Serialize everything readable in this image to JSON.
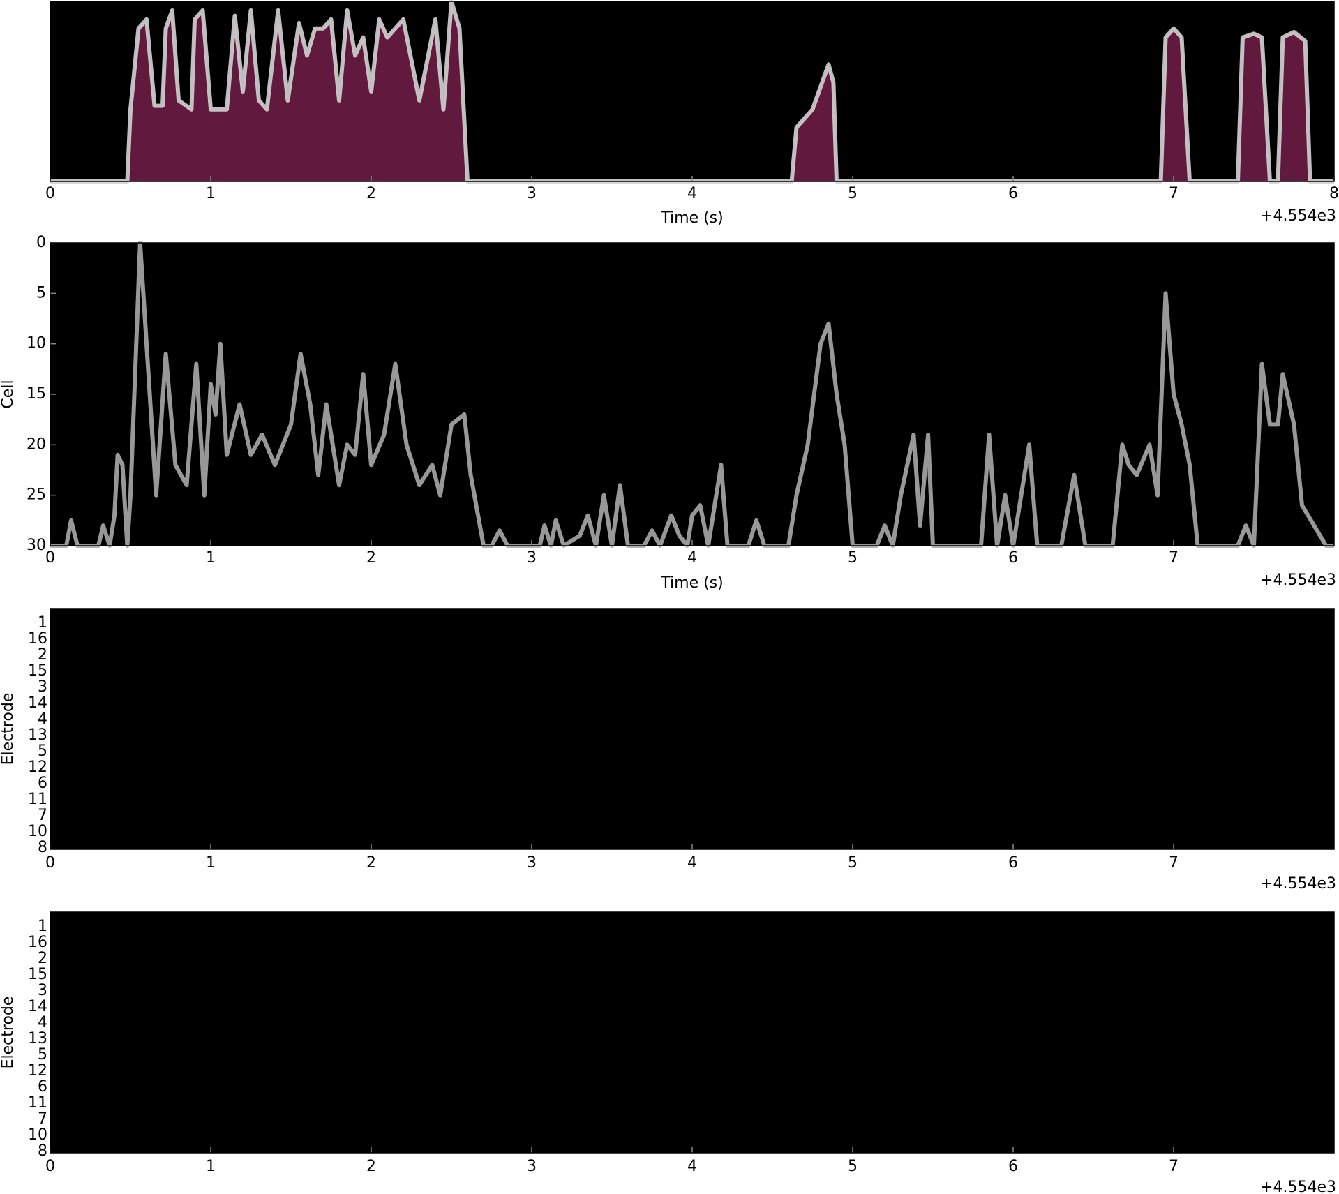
{
  "chart_data": [
    {
      "type": "line",
      "xlabel": "Time (s)",
      "offset_label": "+4.554e3",
      "color": "#d3d3d3",
      "fill": "#b0306f",
      "xlim": [
        0,
        8
      ],
      "xticks": [
        0,
        1,
        2,
        3,
        4,
        5,
        6,
        7,
        8
      ],
      "ylim": [
        0,
        1
      ],
      "invert_y": false,
      "series": [
        {
          "name": "envelope",
          "x": [
            0,
            0.48,
            0.5,
            0.55,
            0.6,
            0.65,
            0.7,
            0.72,
            0.76,
            0.8,
            0.88,
            0.9,
            0.95,
            1.0,
            1.1,
            1.15,
            1.2,
            1.25,
            1.3,
            1.35,
            1.42,
            1.48,
            1.55,
            1.6,
            1.65,
            1.7,
            1.75,
            1.8,
            1.85,
            1.9,
            1.95,
            2.0,
            2.05,
            2.1,
            2.2,
            2.3,
            2.4,
            2.45,
            2.5,
            2.55,
            2.6,
            4.62,
            4.65,
            4.75,
            4.85,
            4.88,
            4.9,
            6.92,
            6.95,
            7.0,
            7.05,
            7.1,
            7.4,
            7.43,
            7.5,
            7.55,
            7.6,
            7.65,
            7.68,
            7.75,
            7.82,
            7.85,
            8
          ],
          "values": [
            0,
            0,
            0.4,
            0.85,
            0.9,
            0.42,
            0.42,
            0.85,
            0.95,
            0.45,
            0.4,
            0.9,
            0.95,
            0.4,
            0.4,
            0.92,
            0.5,
            0.95,
            0.45,
            0.4,
            0.95,
            0.45,
            0.88,
            0.7,
            0.85,
            0.85,
            0.9,
            0.45,
            0.95,
            0.7,
            0.8,
            0.5,
            0.9,
            0.8,
            0.9,
            0.45,
            0.9,
            0.4,
            1.0,
            0.85,
            0,
            0,
            0.3,
            0.4,
            0.65,
            0.55,
            0,
            0,
            0.8,
            0.85,
            0.8,
            0,
            0,
            0.8,
            0.82,
            0.8,
            0,
            0,
            0.8,
            0.83,
            0.78,
            0,
            0
          ]
        }
      ]
    },
    {
      "type": "line",
      "xlabel": "Time (s)",
      "ylabel": "Cell",
      "offset_label": "+4.554e3",
      "color": "#a9a9a9",
      "xlim": [
        0,
        8
      ],
      "xticks": [
        0,
        1,
        2,
        3,
        4,
        5,
        6,
        7
      ],
      "ylim": [
        0,
        30
      ],
      "invert_y": true,
      "yticks": [
        0,
        5,
        10,
        15,
        20,
        25,
        30
      ],
      "series": [
        {
          "name": "rate",
          "x": [
            0,
            0.1,
            0.13,
            0.17,
            0.3,
            0.33,
            0.37,
            0.4,
            0.42,
            0.45,
            0.48,
            0.5,
            0.56,
            0.62,
            0.66,
            0.72,
            0.78,
            0.85,
            0.91,
            0.96,
            1.0,
            1.03,
            1.06,
            1.1,
            1.18,
            1.25,
            1.32,
            1.4,
            1.45,
            1.5,
            1.56,
            1.62,
            1.67,
            1.72,
            1.8,
            1.85,
            1.9,
            1.95,
            2.0,
            2.08,
            2.15,
            2.22,
            2.3,
            2.38,
            2.43,
            2.5,
            2.58,
            2.62,
            2.7,
            2.75,
            2.8,
            2.85,
            3.05,
            3.08,
            3.12,
            3.15,
            3.2,
            3.3,
            3.35,
            3.4,
            3.45,
            3.5,
            3.55,
            3.6,
            3.7,
            3.75,
            3.8,
            3.87,
            3.92,
            3.97,
            4.0,
            4.05,
            4.1,
            4.18,
            4.22,
            4.35,
            4.4,
            4.45,
            4.6,
            4.65,
            4.72,
            4.8,
            4.85,
            4.9,
            4.95,
            5.0,
            5.15,
            5.2,
            5.25,
            5.3,
            5.38,
            5.42,
            5.47,
            5.5,
            5.8,
            5.85,
            5.9,
            5.95,
            6.0,
            6.05,
            6.1,
            6.15,
            6.3,
            6.38,
            6.45,
            6.62,
            6.68,
            6.72,
            6.77,
            6.85,
            6.9,
            6.95,
            7.0,
            7.05,
            7.1,
            7.15,
            7.4,
            7.45,
            7.5,
            7.55,
            7.6,
            7.65,
            7.68,
            7.75,
            7.8,
            7.95,
            8
          ],
          "values": [
            30,
            30,
            27.5,
            30,
            30,
            28,
            30,
            27,
            21,
            22,
            30,
            25,
            0,
            15,
            25,
            11,
            22,
            24,
            12,
            25,
            14,
            17,
            10,
            21,
            16,
            21,
            19,
            22,
            20,
            18,
            11,
            16,
            23,
            16,
            24,
            20,
            21,
            13,
            22,
            19,
            12,
            20,
            24,
            22,
            25,
            18,
            17,
            23,
            30,
            30,
            28.5,
            30,
            30,
            28,
            30,
            27.5,
            30,
            29,
            27,
            30,
            25,
            30,
            24,
            30,
            30,
            28.5,
            30,
            27,
            29,
            30,
            27,
            26,
            30,
            22,
            30,
            30,
            27.5,
            30,
            30,
            25,
            20,
            10,
            8,
            15,
            20,
            30,
            30,
            28,
            30,
            25,
            19,
            28,
            19,
            30,
            30,
            19,
            30,
            25,
            30,
            25,
            20,
            30,
            30,
            23,
            30,
            30,
            20,
            22,
            23,
            20,
            25,
            5,
            15,
            18,
            22,
            30,
            30,
            28,
            30,
            12,
            18,
            18,
            13,
            18,
            26,
            30,
            30
          ]
        }
      ]
    },
    {
      "type": "heatmap",
      "ylabel": "Electrode",
      "offset_label": "+4.554e3",
      "xlim": [
        0,
        8
      ],
      "xticks": [
        0,
        1,
        2,
        3,
        4,
        5,
        6,
        7
      ],
      "rows": [
        "1",
        "16",
        "2",
        "15",
        "3",
        "14",
        "4",
        "13",
        "5",
        "12",
        "6",
        "11",
        "7",
        "10",
        "8"
      ]
    },
    {
      "type": "heatmap",
      "ylabel": "Electrode",
      "offset_label": "+4.554e3",
      "xlim": [
        0,
        8
      ],
      "xticks": [
        0,
        1,
        2,
        3,
        4,
        5,
        6,
        7
      ],
      "rows": [
        "1",
        "16",
        "2",
        "15",
        "3",
        "14",
        "4",
        "13",
        "5",
        "12",
        "6",
        "11",
        "7",
        "10",
        "8"
      ]
    }
  ]
}
